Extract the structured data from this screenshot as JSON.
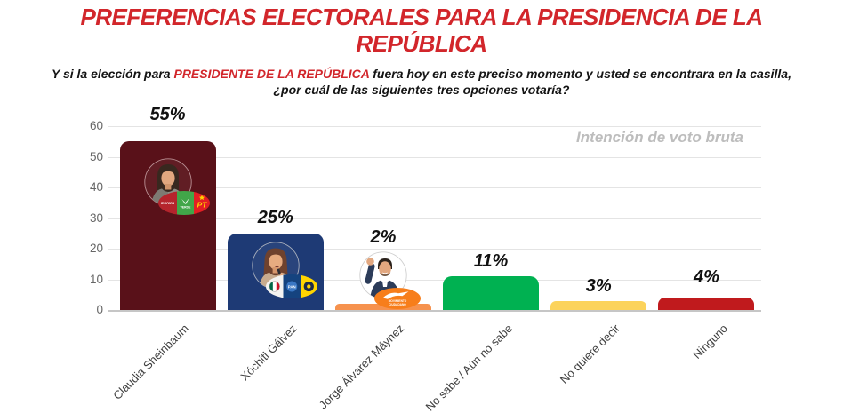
{
  "title_line1": "PREFERENCIAS ELECTORALES PARA LA PRESIDENCIA DE LA",
  "title_line2": "REPÚBLICA",
  "question": {
    "line1_prefix": "Y si la elección para ",
    "line1_highlight": "PRESIDENTE DE LA REPÚBLICA",
    "line1_suffix": " fuera hoy en este preciso momento y usted se encontrara en la casilla,",
    "line2": "¿por cuál de las siguientes tres opciones votaría?"
  },
  "annotation": "Intención de voto bruta",
  "logos": {
    "morena": "morena",
    "verde": "VERDE",
    "pt": "PT",
    "pan": "PAN",
    "mc_line1": "MOVIMIENTO",
    "mc_line2": "CIUDADANO"
  },
  "colors": {
    "title_red": "#d2262b",
    "grid": "#e4e4e4",
    "axis_line": "#c6c6c6",
    "tick_text": "#666666",
    "category_text": "#3f3f3f",
    "annotation_text": "#bdbdbd",
    "value_text": "#111111"
  },
  "chart_data": {
    "type": "bar",
    "title": "PREFERENCIAS ELECTORALES PARA LA PRESIDENCIA DE LA REPÚBLICA",
    "subtitle": "Y si la elección para PRESIDENTE DE LA REPÚBLICA fuera hoy en este preciso momento y usted se encontrara en la casilla, ¿por cuál de las siguientes tres opciones votaría?",
    "annotation": "Intención de voto bruta",
    "xlabel": "",
    "ylabel": "",
    "ylim": [
      0,
      60
    ],
    "yticks": [
      "0",
      "10",
      "20",
      "30",
      "40",
      "50",
      "60"
    ],
    "grid": true,
    "legend": "none",
    "categories": [
      "Claudia Sheinbaum",
      "Xóchitl Gálvez",
      "Jorge Álvarez Máynez",
      "No sabe / Aún no sabe",
      "No quiere decir",
      "Ninguno"
    ],
    "values": [
      55,
      25,
      2,
      11,
      3,
      4
    ],
    "value_labels": [
      "55%",
      "25%",
      "2%",
      "11%",
      "3%",
      "4%"
    ],
    "bars": [
      {
        "category": "Claudia Sheinbaum",
        "value": 55,
        "label": "55%",
        "color": "#591119",
        "avatar": "claudia-sheinbaum-photo",
        "parties": [
          "MORENA",
          "PVEM",
          "PT"
        ]
      },
      {
        "category": "Xóchitl Gálvez",
        "value": 25,
        "label": "25%",
        "color": "#1e3a75",
        "avatar": "xochitl-galvez-photo",
        "parties": [
          "PRI",
          "PAN",
          "PRD"
        ]
      },
      {
        "category": "Jorge Álvarez Máynez",
        "value": 2,
        "label": "2%",
        "color": "#f6924e",
        "avatar": "jorge-alvarez-maynez-photo",
        "parties": [
          "MOVIMIENTO CIUDADANO"
        ]
      },
      {
        "category": "No sabe / Aún no sabe",
        "value": 11,
        "label": "11%",
        "color": "#00b151"
      },
      {
        "category": "No quiere decir",
        "value": 3,
        "label": "3%",
        "color": "#fcd35b"
      },
      {
        "category": "Ninguno",
        "value": 4,
        "label": "4%",
        "color": "#c01a1d"
      }
    ]
  }
}
